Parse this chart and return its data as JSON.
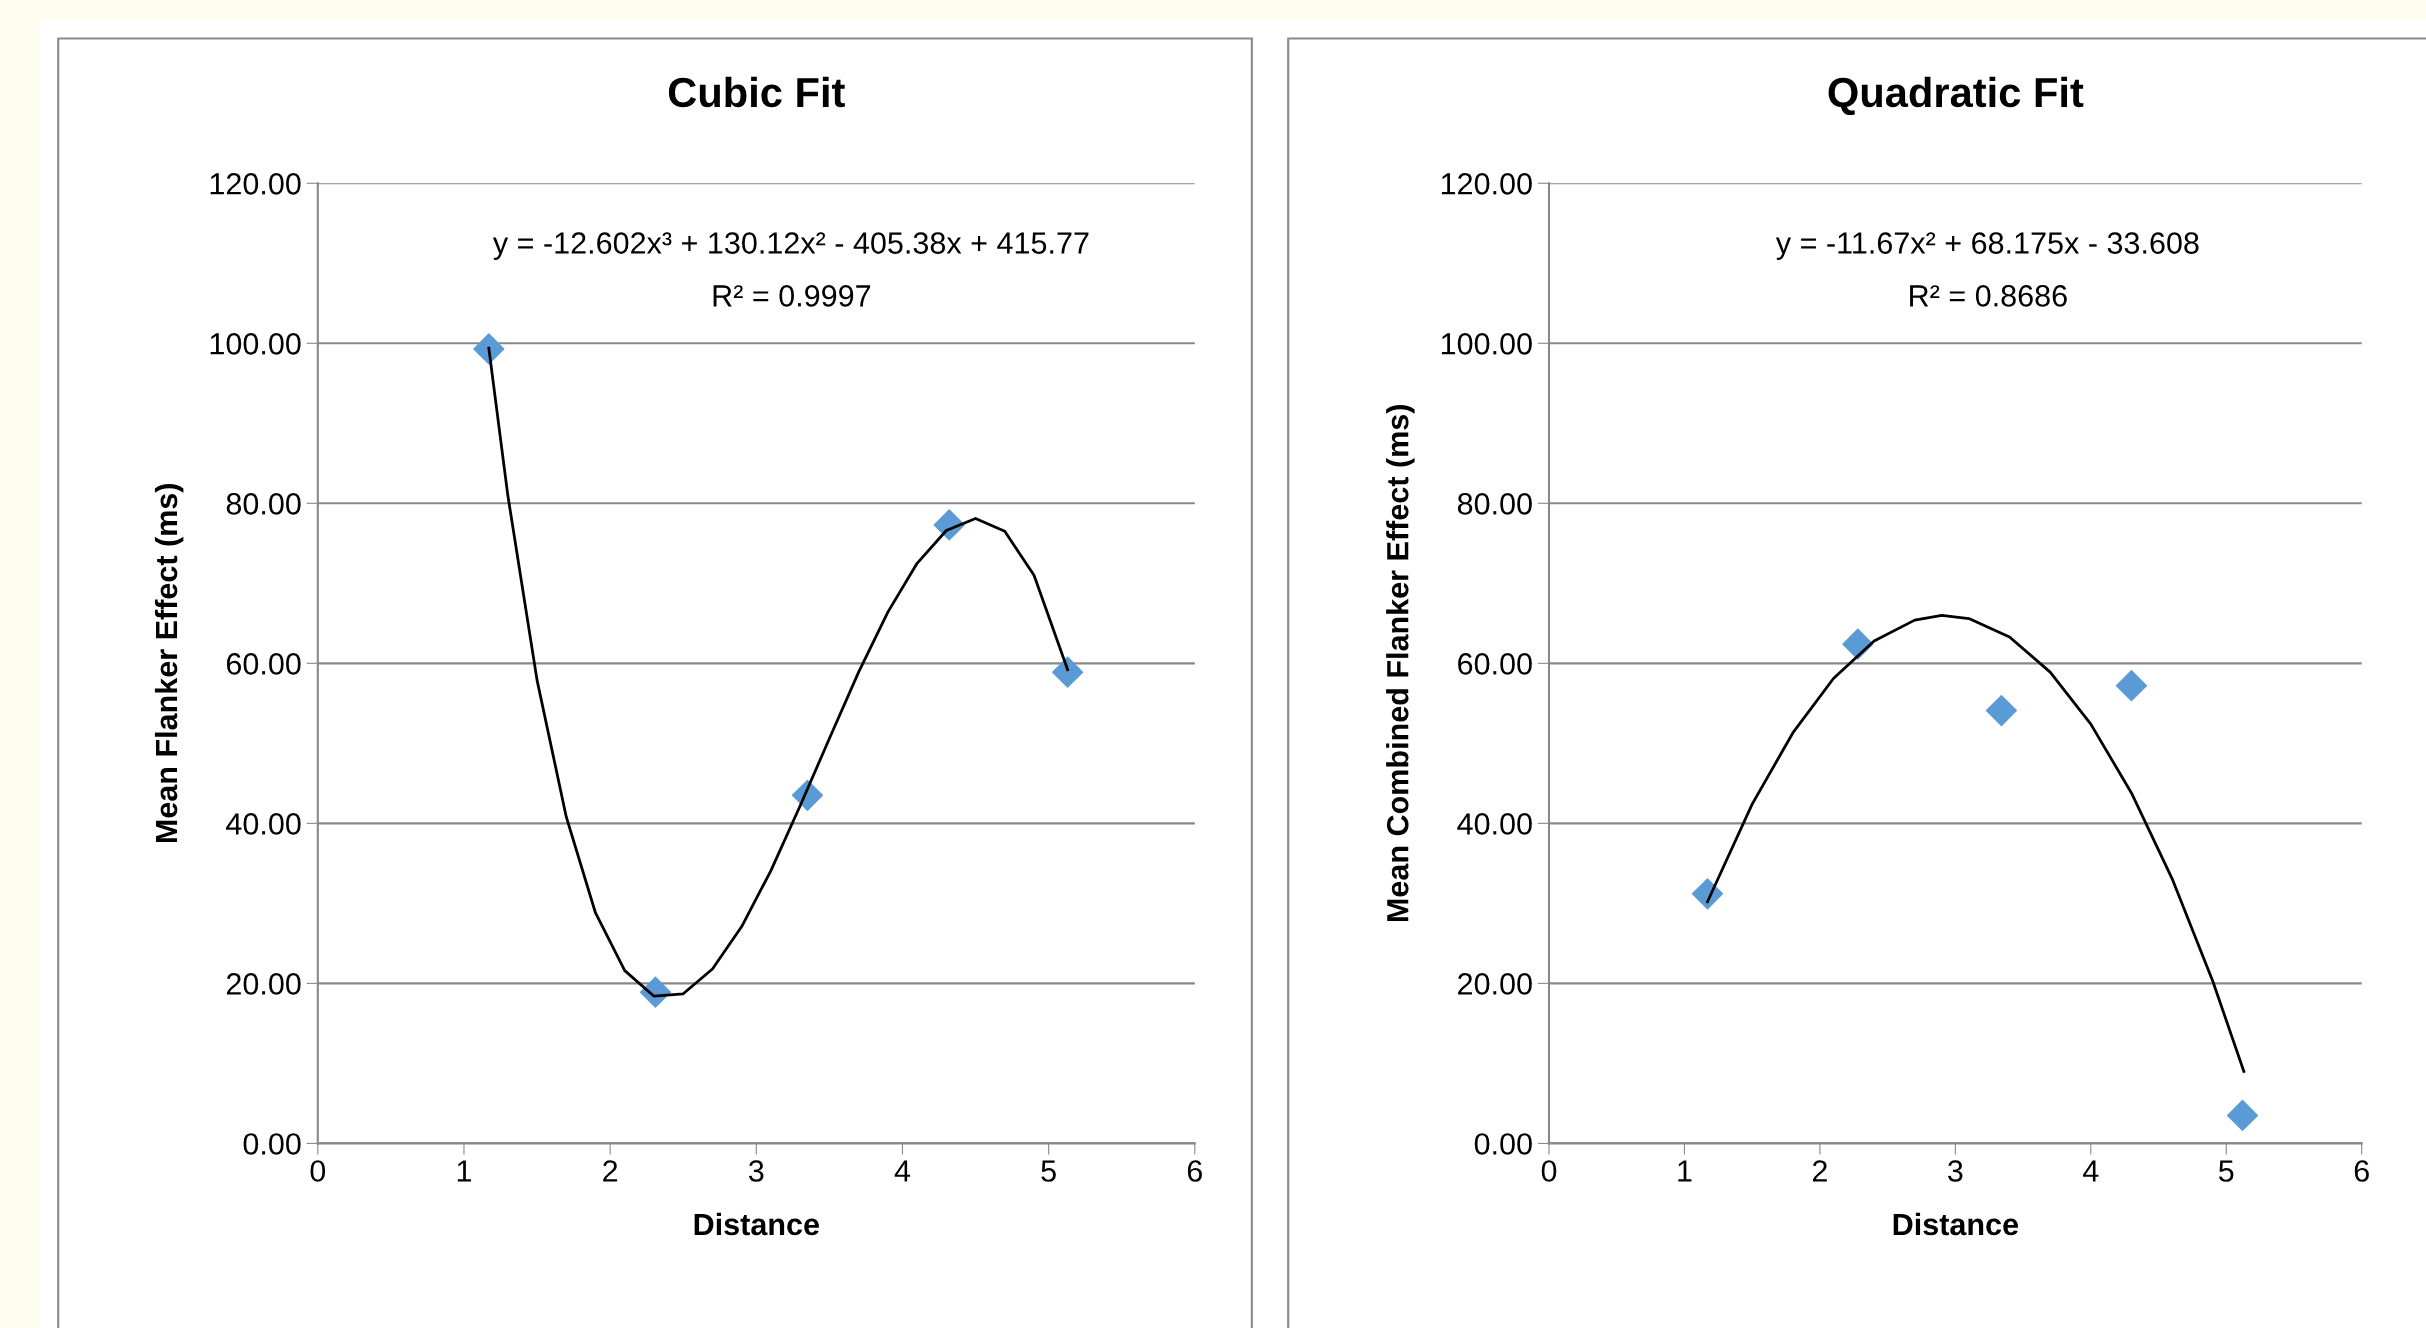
{
  "chart_data": [
    {
      "type": "scatter",
      "title": "Cubic Fit",
      "xlabel": "Distance",
      "ylabel": "Mean Flanker Effect (ms)",
      "annotations": [
        "y = -12.602x³ + 130.12x² - 405.38x + 415.77",
        "R² = 0.9997"
      ],
      "x": [
        1.17,
        2.31,
        3.35,
        4.32,
        5.13
      ],
      "series": [
        {
          "color": "#5b9bd5",
          "marker": "diamond",
          "values": [
            99.3,
            18.9,
            43.5,
            77.3,
            58.9
          ]
        },
        {
          "type": "line",
          "color": "#000000",
          "marker": "none",
          "x": [
            1.17,
            1.3,
            1.5,
            1.7,
            1.9,
            2.1,
            2.3,
            2.5,
            2.7,
            2.9,
            3.1,
            3.3,
            3.5,
            3.7,
            3.9,
            4.1,
            4.3,
            4.5,
            4.7,
            4.9,
            5.13
          ],
          "values": [
            99.4,
            81.0,
            57.9,
            40.8,
            28.8,
            21.6,
            18.4,
            18.7,
            21.8,
            27.1,
            34.1,
            42.2,
            50.6,
            58.9,
            66.4,
            72.5,
            76.6,
            78.1,
            76.5,
            71.0,
            59.2
          ]
        }
      ],
      "xlim": [
        0,
        6
      ],
      "xticks": [
        0,
        1,
        2,
        3,
        4,
        5,
        6
      ],
      "ylim": [
        0,
        120
      ],
      "yticks": [
        {
          "value": 0,
          "label": "0.00"
        },
        {
          "value": 20,
          "label": "20.00"
        },
        {
          "value": 40,
          "label": "40.00"
        },
        {
          "value": 60,
          "label": "60.00"
        },
        {
          "value": 80,
          "label": "80.00"
        },
        {
          "value": 100,
          "label": "100.00"
        },
        {
          "value": 120,
          "label": "120.00"
        }
      ],
      "grid": "y"
    },
    {
      "type": "scatter",
      "title": "Quadratic Fit",
      "xlabel": "Distance",
      "ylabel": "Mean Combined Flanker Effect (ms)",
      "annotations": [
        "y = -11.67x² + 68.175x - 33.608",
        "R² = 0.8686"
      ],
      "x": [
        1.17,
        2.28,
        3.34,
        4.3,
        5.12
      ],
      "series": [
        {
          "color": "#5b9bd5",
          "marker": "diamond",
          "values": [
            31.2,
            62.4,
            54.1,
            57.2,
            3.5
          ]
        },
        {
          "type": "line",
          "color": "#000000",
          "marker": "none",
          "x": [
            1.17,
            1.5,
            1.8,
            2.1,
            2.4,
            2.7,
            2.9,
            3.1,
            3.4,
            3.7,
            4.0,
            4.3,
            4.6,
            4.9,
            5.13
          ],
          "values": [
            30.2,
            42.4,
            51.3,
            58.1,
            62.8,
            65.4,
            66.0,
            65.6,
            63.3,
            58.9,
            52.4,
            43.8,
            33.1,
            20.3,
            9.0
          ]
        }
      ],
      "xlim": [
        0,
        6
      ],
      "xticks": [
        0,
        1,
        2,
        3,
        4,
        5,
        6
      ],
      "ylim": [
        0,
        120
      ],
      "yticks": [
        {
          "value": 0,
          "label": "0.00"
        },
        {
          "value": 20,
          "label": "20.00"
        },
        {
          "value": 40,
          "label": "40.00"
        },
        {
          "value": 60,
          "label": "60.00"
        },
        {
          "value": 80,
          "label": "80.00"
        },
        {
          "value": 100,
          "label": "100.00"
        },
        {
          "value": 120,
          "label": "120.00"
        }
      ],
      "grid": "y"
    }
  ]
}
